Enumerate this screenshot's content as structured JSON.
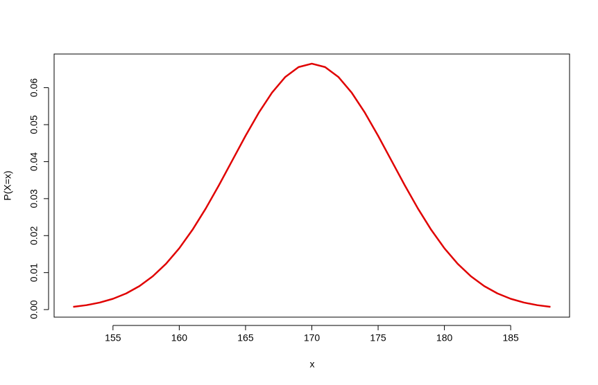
{
  "chart_data": {
    "type": "line",
    "x_label": "x",
    "y_label": "P(X=x)",
    "x": [
      152,
      153,
      154,
      155,
      156,
      157,
      158,
      159,
      160,
      161,
      162,
      163,
      164,
      165,
      166,
      167,
      168,
      169,
      170,
      171,
      172,
      173,
      174,
      175,
      176,
      177,
      178,
      179,
      180,
      181,
      182,
      183,
      184,
      185,
      186,
      187,
      188
    ],
    "series": [
      {
        "color": "#e00000",
        "values": [
          0.00074,
          0.0012,
          0.0019,
          0.00292,
          0.00437,
          0.00636,
          0.009,
          0.01239,
          0.01658,
          0.02159,
          0.02734,
          0.03367,
          0.04033,
          0.04699,
          0.05324,
          0.05868,
          0.0629,
          0.06557,
          0.06649,
          0.06557,
          0.0629,
          0.05868,
          0.05324,
          0.04699,
          0.04033,
          0.03367,
          0.02734,
          0.02159,
          0.01658,
          0.01239,
          0.009,
          0.00636,
          0.00437,
          0.00292,
          0.0019,
          0.0012,
          0.00074
        ]
      }
    ],
    "xlim": [
      150.56,
      189.44
    ],
    "ylim": [
      -0.00204,
      0.0691
    ],
    "xticks": [
      155,
      160,
      165,
      170,
      175,
      180,
      185
    ],
    "yticks": [
      {
        "value": 0,
        "label": "0.00"
      },
      {
        "value": 0.01,
        "label": "0.01"
      },
      {
        "value": 0.02,
        "label": "0.02"
      },
      {
        "value": 0.03,
        "label": "0.03"
      },
      {
        "value": 0.04,
        "label": "0.04"
      },
      {
        "value": 0.05,
        "label": "0.05"
      },
      {
        "value": 0.06,
        "label": "0.06"
      }
    ]
  }
}
